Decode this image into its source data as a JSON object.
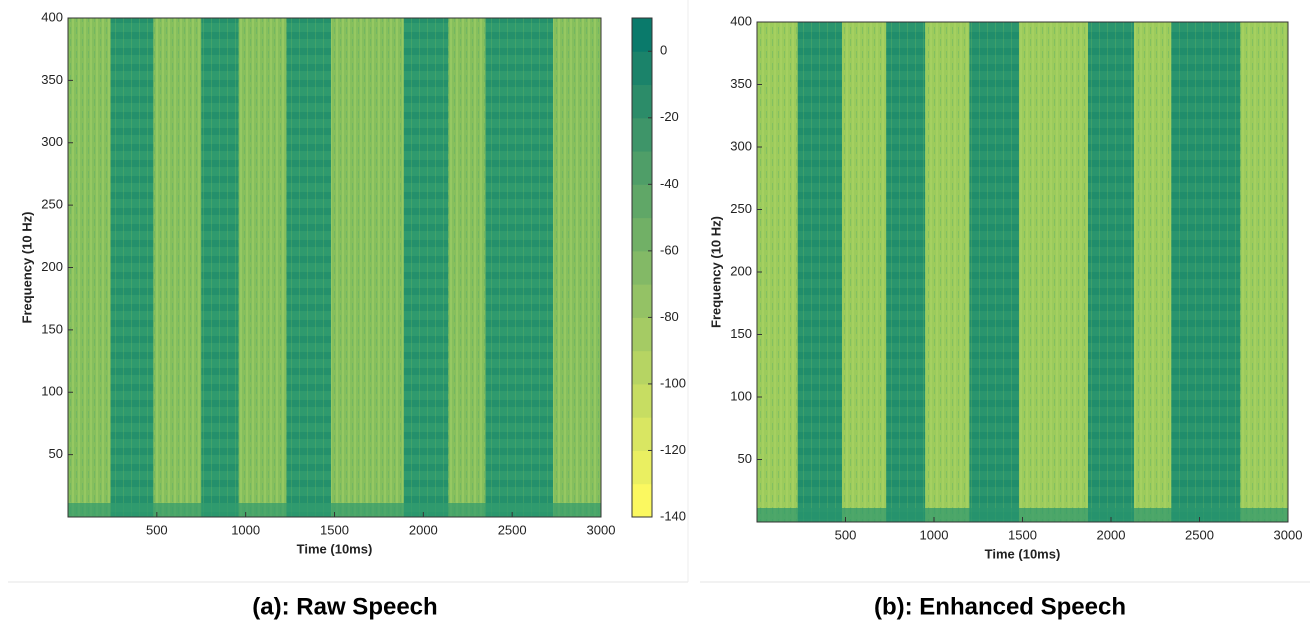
{
  "chart_data": [
    {
      "type": "spectrogram",
      "caption": "(a): Raw Speech",
      "xlabel": "Time (10ms)",
      "ylabel": "Frequency (10 Hz)",
      "xlim": [
        0,
        3000
      ],
      "xticks": [
        500,
        1000,
        1500,
        2000,
        2500,
        3000
      ],
      "ylim": [
        0,
        400
      ],
      "yticks": [
        50,
        100,
        150,
        200,
        250,
        300,
        350,
        400
      ],
      "background_color": "#86bf5d",
      "segment_color": "#2f9a6e",
      "segments": [
        [
          240,
          480
        ],
        [
          750,
          960
        ],
        [
          1230,
          1480
        ],
        [
          1890,
          2140
        ],
        [
          2350,
          2730
        ]
      ],
      "colorbar": {
        "clim": [
          -140,
          10
        ],
        "ticks": [
          0,
          -20,
          -40,
          -60,
          -80,
          -100,
          -120,
          -140
        ],
        "levels": 15,
        "colors": [
          "#fbf860",
          "#0a7a6b"
        ]
      }
    },
    {
      "type": "spectrogram",
      "caption": "(b): Enhanced Speech",
      "xlabel": "Time (10ms)",
      "ylabel": "Frequency (10 Hz)",
      "xlim": [
        0,
        3000
      ],
      "xticks": [
        500,
        1000,
        1500,
        2000,
        2500,
        3000
      ],
      "ylim": [
        0,
        400
      ],
      "yticks": [
        50,
        100,
        150,
        200,
        250,
        300,
        350,
        400
      ],
      "background_color": "#9ccb5c",
      "segment_color": "#2a956e",
      "segments": [
        [
          230,
          480
        ],
        [
          730,
          950
        ],
        [
          1200,
          1480
        ],
        [
          1870,
          2130
        ],
        [
          2340,
          2730
        ]
      ]
    }
  ]
}
